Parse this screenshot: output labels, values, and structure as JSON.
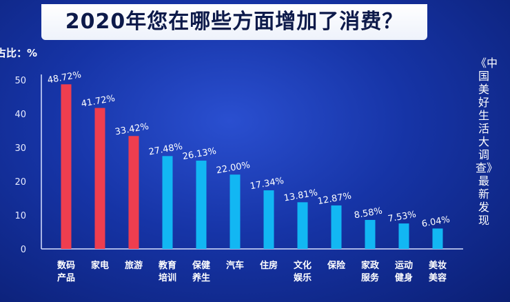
{
  "title": "2020年您在哪些方面增加了消费？",
  "side_note": "《中国美好生活大调查》最新发现",
  "colors": {
    "highlight": "#ee3e4f",
    "normal": "#12b7f3"
  },
  "chart_data": {
    "type": "bar",
    "title": "2020年您在哪些方面增加了消费？",
    "ylabel": "占比：%",
    "ylim": [
      0,
      50
    ],
    "yticks": [
      0,
      10,
      20,
      30,
      40,
      50
    ],
    "grid": false,
    "categories": [
      [
        "数码",
        "产品"
      ],
      [
        "家电"
      ],
      [
        "旅游"
      ],
      [
        "教育",
        "培训"
      ],
      [
        "保健",
        "养生"
      ],
      [
        "汽车"
      ],
      [
        "住房"
      ],
      [
        "文化",
        "娱乐"
      ],
      [
        "保险"
      ],
      [
        "家政",
        "服务"
      ],
      [
        "运动",
        "健身"
      ],
      [
        "美妆",
        "美容"
      ]
    ],
    "values": [
      48.72,
      41.72,
      33.42,
      27.48,
      26.13,
      22.0,
      17.34,
      13.81,
      12.87,
      8.58,
      7.53,
      6.04
    ],
    "value_labels": [
      "48.72%",
      "41.72%",
      "33.42%",
      "27.48%",
      "26.13%",
      "22.00%",
      "17.34%",
      "13.81%",
      "12.87%",
      "8.58%",
      "7.53%",
      "6.04%"
    ],
    "highlighted_count": 3
  }
}
